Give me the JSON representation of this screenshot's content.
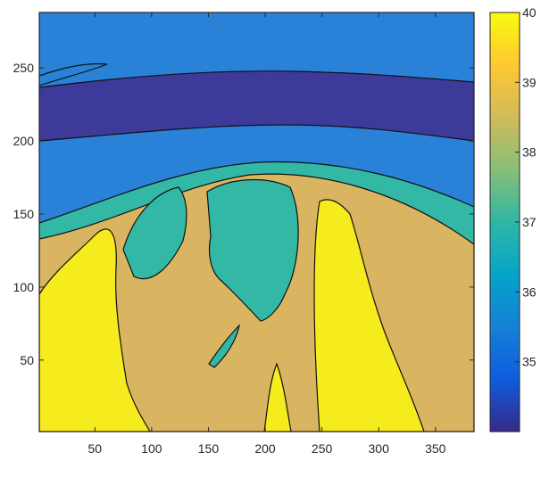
{
  "chart_data": {
    "type": "heatmap",
    "subtype": "filled-contour",
    "title": "",
    "xlabel": "",
    "ylabel": "",
    "xlim": [
      1,
      384
    ],
    "ylim": [
      1,
      288
    ],
    "x_ticks": [
      "50",
      "100",
      "150",
      "200",
      "250",
      "300",
      "350"
    ],
    "y_ticks": [
      "50",
      "100",
      "150",
      "200",
      "250"
    ],
    "colorbar": {
      "limits": [
        34,
        40
      ],
      "ticks": [
        "35",
        "36",
        "37",
        "38",
        "39",
        "40"
      ],
      "colormap": "parula",
      "colors": [
        "#352a87",
        "#0f5cdd",
        "#1481d6",
        "#06a4ca",
        "#2eb7a4",
        "#87bf77",
        "#d1bb59",
        "#fec832",
        "#f9fb0e"
      ]
    },
    "levels": [
      {
        "value": 34.5,
        "color": "#3d3a9a"
      },
      {
        "value": 35.3,
        "color": "#2a82d8"
      },
      {
        "value": 37.2,
        "color": "#33b8a6"
      },
      {
        "value": 38.8,
        "color": "#d9b561"
      },
      {
        "value": 40.0,
        "color": "#f6eb1c"
      }
    ],
    "grid": false,
    "legend": "colorbar-right"
  }
}
